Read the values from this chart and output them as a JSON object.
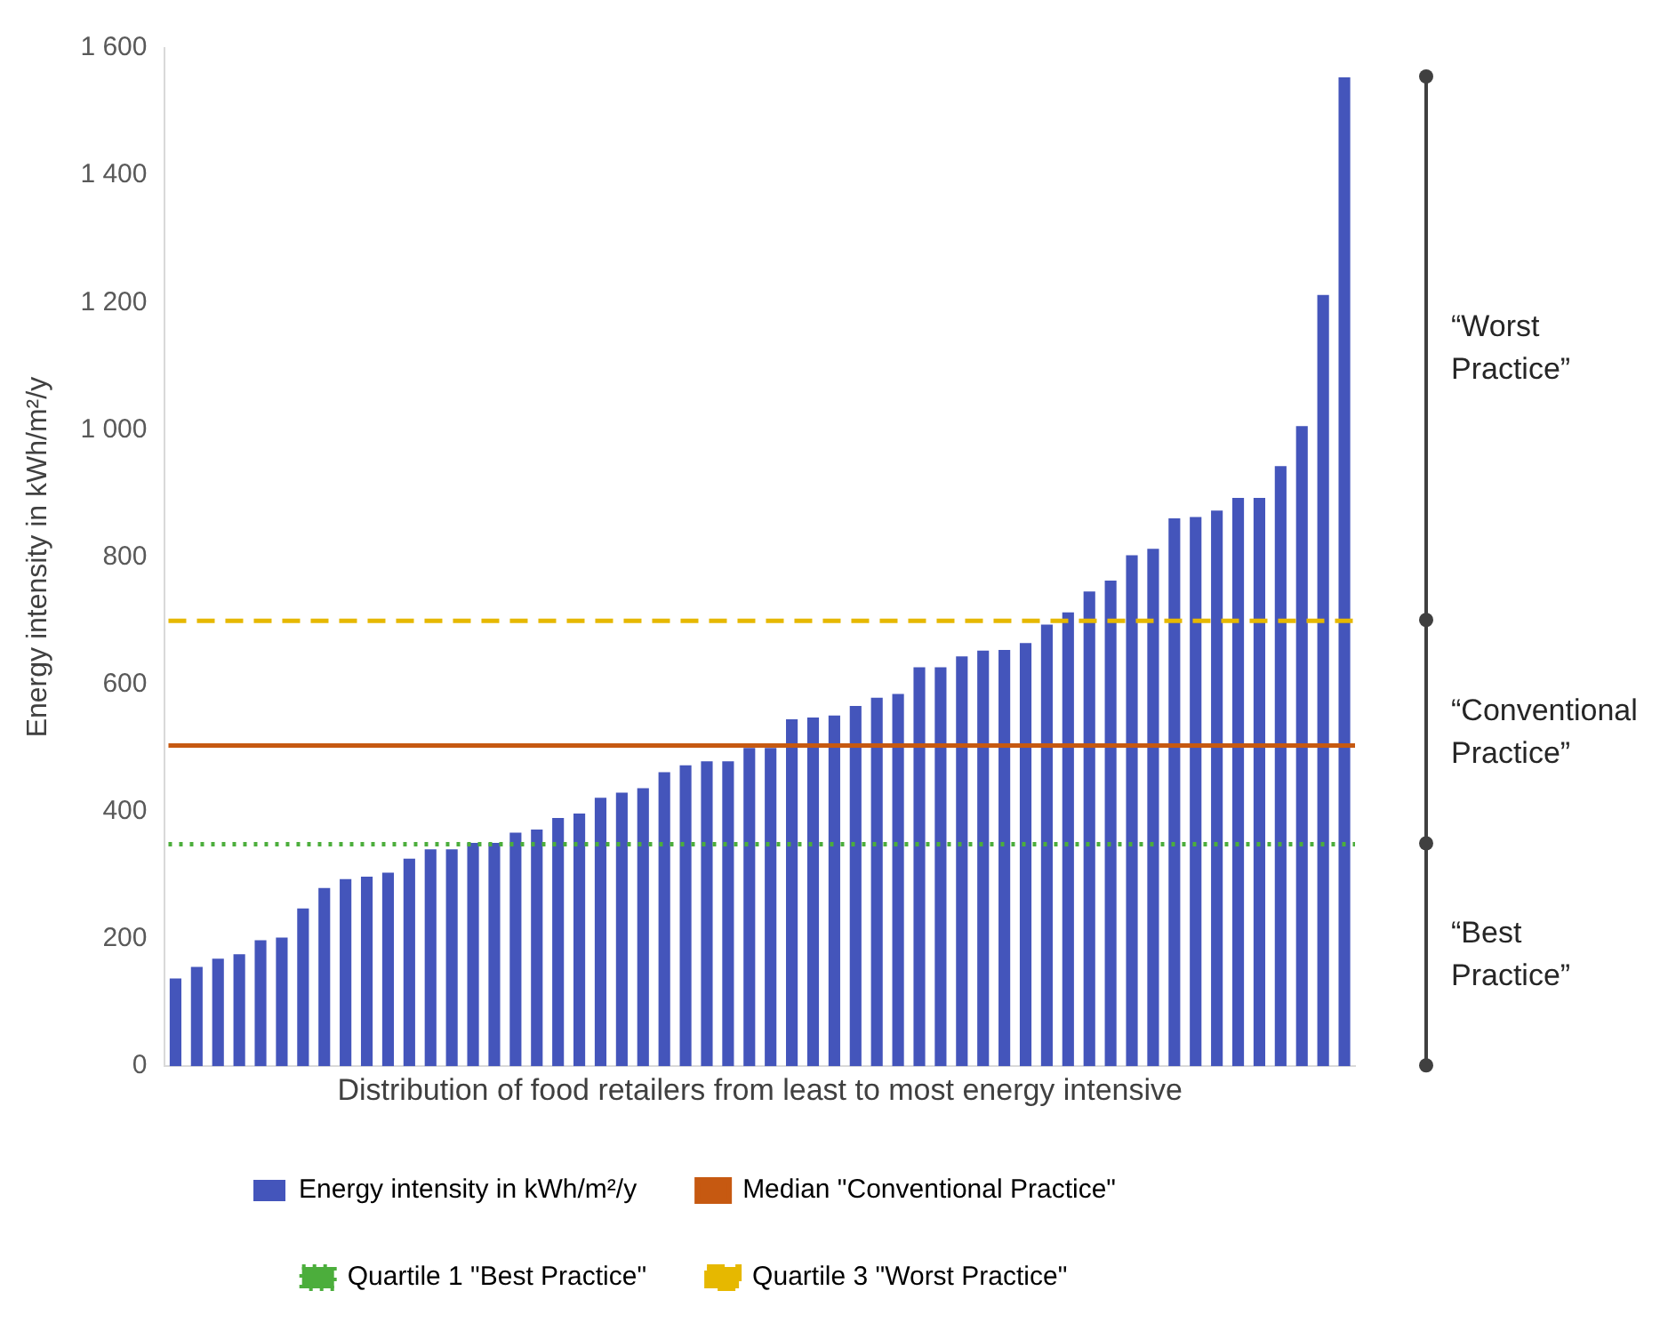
{
  "chart_data": {
    "type": "bar",
    "xlabel": "Distribution of food retailers from least to most energy intensive",
    "ylabel": "Energy intensity in kWh/m²/y",
    "categories": [
      null,
      null,
      null,
      null,
      null,
      null,
      null,
      null,
      null,
      null,
      null,
      null,
      null,
      null,
      null,
      null,
      null,
      null,
      null,
      null,
      null,
      null,
      null,
      null,
      null,
      null,
      null,
      null,
      null,
      null,
      null,
      null,
      null,
      null,
      null,
      null,
      null,
      null,
      null,
      null,
      null,
      null,
      null,
      null,
      null,
      null,
      null,
      null,
      null,
      null,
      null,
      null,
      null,
      null,
      null,
      null
    ],
    "series": [
      {
        "name": "Energy intensity in kWh/m²/y",
        "color": "#4455bb",
        "values": [
          138,
          156,
          169,
          176,
          198,
          202,
          248,
          280,
          294,
          298,
          304,
          326,
          341,
          341,
          351,
          351,
          367,
          372,
          390,
          397,
          422,
          430,
          437,
          462,
          473,
          479,
          479,
          500,
          500,
          545,
          548,
          551,
          566,
          579,
          585,
          627,
          627,
          644,
          653,
          654,
          665,
          694,
          713,
          746,
          763,
          803,
          813,
          861,
          863,
          873,
          893,
          893,
          943,
          1006,
          1212,
          1554
        ]
      }
    ],
    "ylim": [
      0,
      1600
    ],
    "yticks": [
      0,
      200,
      400,
      600,
      800,
      {
        "value": 1000,
        "label": "1 000"
      },
      {
        "value": 1200,
        "label": "1 200"
      },
      {
        "value": 1400,
        "label": "1 400"
      },
      {
        "value": 1600,
        "label": "1 600"
      }
    ],
    "ref_lines": [
      {
        "axis": "y",
        "value": 504,
        "label": "Median \"Conventional Practice\"",
        "color": "#c65911",
        "line_style": "solid"
      },
      {
        "axis": "y",
        "value": 349,
        "label": "Quartile 1 \"Best Practice\"",
        "color": "#4cae3c",
        "line_style": "dotted"
      },
      {
        "axis": "y",
        "value": 700,
        "label": "Quartile 3 \"Worst Practice\"",
        "color": "#e6b800",
        "line_style": "dashed"
      }
    ],
    "annotations": [
      "“Worst Practice”",
      "“Conventional Practice”",
      "“Best Practice”"
    ],
    "grid": false,
    "legend": "bottom"
  }
}
